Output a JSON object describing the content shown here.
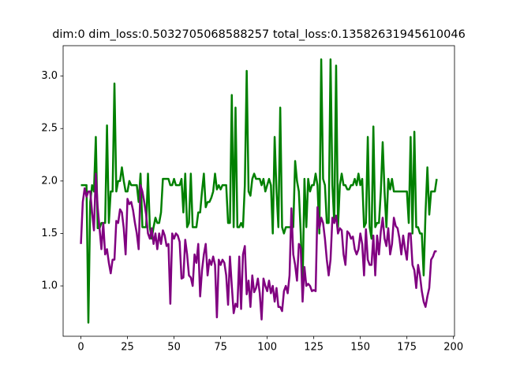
{
  "chart_data": {
    "type": "line",
    "title": "dim:0 dim_loss:0.5032705068588257 total_loss:0.13582631945610046",
    "x": [
      0,
      1,
      2,
      3,
      4,
      5,
      6,
      7,
      8,
      9,
      10,
      11,
      12,
      13,
      14,
      15,
      16,
      17,
      18,
      19,
      20,
      21,
      22,
      23,
      24,
      25,
      26,
      27,
      28,
      29,
      30,
      31,
      32,
      33,
      34,
      35,
      36,
      37,
      38,
      39,
      40,
      41,
      42,
      43,
      44,
      45,
      46,
      47,
      48,
      49,
      50,
      51,
      52,
      53,
      54,
      55,
      56,
      57,
      58,
      59,
      60,
      61,
      62,
      63,
      64,
      65,
      66,
      67,
      68,
      69,
      70,
      71,
      72,
      73,
      74,
      75,
      76,
      77,
      78,
      79,
      80,
      81,
      82,
      83,
      84,
      85,
      86,
      87,
      88,
      89,
      90,
      91,
      92,
      93,
      94,
      95,
      96,
      97,
      98,
      99,
      100,
      101,
      102,
      103,
      104,
      105,
      106,
      107,
      108,
      109,
      110,
      111,
      112,
      113,
      114,
      115,
      116,
      117,
      118,
      119,
      120,
      121,
      122,
      123,
      124,
      125,
      126,
      127,
      128,
      129,
      130,
      131,
      132,
      133,
      134,
      135,
      136,
      137,
      138,
      139,
      140,
      141,
      142,
      143,
      144,
      145,
      146,
      147,
      148,
      149,
      150,
      151,
      152,
      153,
      154,
      155,
      156,
      157,
      158,
      159,
      160,
      161,
      162,
      163,
      164,
      165,
      166,
      167,
      168,
      169,
      170,
      171,
      172,
      173,
      174,
      175,
      176,
      177,
      178,
      179,
      180,
      181,
      182,
      183,
      184,
      185,
      186,
      187,
      188,
      189,
      190,
      191
    ],
    "series": [
      {
        "color": "#008000",
        "values": [
          1.96,
          1.96,
          1.96,
          1.96,
          0.65,
          1.8,
          1.96,
          1.9,
          2.42,
          1.55,
          1.55,
          1.6,
          1.6,
          1.6,
          2.53,
          1.6,
          1.9,
          1.9,
          2.93,
          1.9,
          2.0,
          2.0,
          2.13,
          2.0,
          1.9,
          1.9,
          2.0,
          1.96,
          1.96,
          1.96,
          1.96,
          1.8,
          2.07,
          1.56,
          1.56,
          1.56,
          2.07,
          1.56,
          1.45,
          1.56,
          1.65,
          1.6,
          1.6,
          1.7,
          2.02,
          2.02,
          2.02,
          2.02,
          1.96,
          1.96,
          2.02,
          1.96,
          1.96,
          1.96,
          2.02,
          1.7,
          2.07,
          1.56,
          1.6,
          2.07,
          1.56,
          1.56,
          1.56,
          1.7,
          1.7,
          1.9,
          2.07,
          1.75,
          1.8,
          1.8,
          1.84,
          1.9,
          2.07,
          1.92,
          1.96,
          1.92,
          1.96,
          1.96,
          1.96,
          1.6,
          1.6,
          2.82,
          1.56,
          2.7,
          1.56,
          1.56,
          1.6,
          1.56,
          1.96,
          3.05,
          1.9,
          1.86,
          2.02,
          2.07,
          2.02,
          2.02,
          2.02,
          1.96,
          2.02,
          1.9,
          1.96,
          2.02,
          1.96,
          1.5,
          2.42,
          1.9,
          1.56,
          2.7,
          1.56,
          1.5,
          1.56,
          1.56,
          1.56,
          1.56,
          1.56,
          2.19,
          2.0,
          1.9,
          1.5,
          1.0,
          2.02,
          1.56,
          2.02,
          1.9,
          1.96,
          1.96,
          2.07,
          1.96,
          1.5,
          3.16,
          2.02,
          1.96,
          1.6,
          1.6,
          3.16,
          1.96,
          1.6,
          3.1,
          1.56,
          1.96,
          2.07,
          1.96,
          1.96,
          1.92,
          1.92,
          1.96,
          1.96,
          2.02,
          1.96,
          2.07,
          1.96,
          2.02,
          1.56,
          1.6,
          2.42,
          1.56,
          1.45,
          2.52,
          1.56,
          1.6,
          1.6,
          1.9,
          2.37,
          1.9,
          1.56,
          2.02,
          1.92,
          2.02,
          1.9,
          1.9,
          1.9,
          1.9,
          1.9,
          1.9,
          1.9,
          1.9,
          1.6,
          2.42,
          1.5,
          2.47,
          1.56,
          1.56,
          1.5,
          1.5,
          1.1,
          1.7,
          2.13,
          1.68,
          1.9,
          1.9,
          1.9,
          2.02
        ]
      },
      {
        "color": "#800080",
        "values": [
          1.4,
          1.8,
          1.93,
          1.85,
          1.9,
          1.9,
          1.7,
          1.53,
          2.07,
          1.75,
          1.55,
          1.35,
          1.6,
          1.3,
          1.35,
          1.22,
          1.12,
          1.25,
          1.25,
          1.62,
          1.6,
          1.73,
          1.7,
          1.55,
          1.3,
          1.83,
          1.78,
          1.8,
          1.72,
          1.6,
          1.5,
          1.35,
          1.96,
          1.9,
          1.8,
          1.68,
          1.5,
          1.45,
          1.55,
          1.4,
          1.5,
          1.35,
          1.5,
          1.4,
          1.53,
          1.48,
          1.38,
          1.4,
          0.83,
          1.5,
          1.45,
          1.5,
          1.48,
          1.42,
          1.07,
          1.08,
          1.44,
          1.3,
          1.1,
          1.08,
          1.0,
          1.3,
          1.22,
          1.4,
          0.9,
          1.15,
          1.3,
          1.4,
          1.1,
          1.25,
          1.2,
          1.28,
          1.2,
          0.7,
          1.25,
          1.2,
          1.25,
          1.22,
          1.1,
          0.82,
          1.28,
          1.0,
          0.74,
          0.83,
          0.8,
          1.28,
          0.78,
          1.3,
          1.38,
          0.92,
          1.05,
          0.8,
          1.1,
          0.94,
          0.98,
          1.07,
          0.93,
          0.68,
          1.07,
          1.0,
          0.95,
          1.05,
          0.93,
          1.0,
          0.85,
          0.98,
          0.8,
          0.8,
          0.76,
          0.95,
          1.0,
          0.93,
          1.1,
          1.74,
          1.3,
          1.2,
          1.05,
          1.4,
          1.36,
          0.85,
          1.18,
          1.0,
          1.02,
          1.0,
          0.95,
          0.96,
          0.95,
          1.75,
          1.55,
          1.65,
          1.6,
          1.45,
          1.25,
          1.1,
          1.25,
          1.65,
          1.6,
          1.67,
          1.5,
          1.55,
          1.53,
          1.3,
          1.2,
          1.52,
          1.5,
          1.45,
          1.47,
          1.35,
          1.3,
          1.35,
          1.5,
          1.4,
          1.1,
          1.54,
          1.25,
          1.2,
          1.2,
          1.48,
          1.1,
          1.48,
          1.3,
          1.52,
          1.65,
          1.45,
          1.38,
          1.55,
          1.3,
          1.4,
          1.65,
          1.57,
          1.55,
          1.45,
          1.3,
          1.48,
          1.35,
          1.25,
          1.5,
          1.5,
          1.2,
          1.15,
          0.98,
          1.2,
          1.1,
          0.95,
          0.85,
          0.8,
          0.9,
          0.98,
          1.25,
          1.28,
          1.33,
          1.33
        ]
      }
    ],
    "xlim": [
      -9.55,
      200.55
    ],
    "ylim": [
      0.52,
      3.29
    ],
    "xticks": [
      0,
      25,
      50,
      75,
      100,
      125,
      150,
      175,
      200
    ],
    "yticks": [
      {
        "value": 1,
        "label": "1.0"
      },
      1.5,
      {
        "value": 2,
        "label": "2.0"
      },
      2.5,
      {
        "value": 3,
        "label": "3.0"
      }
    ]
  }
}
